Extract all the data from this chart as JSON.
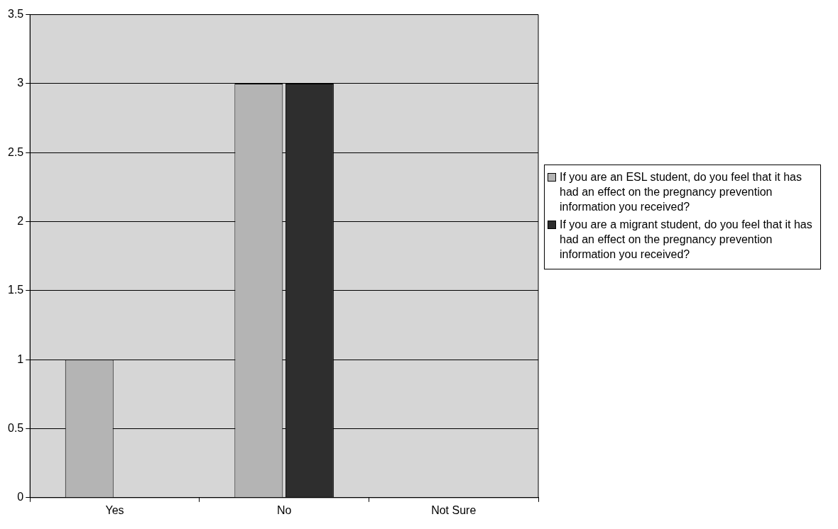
{
  "chart_data": {
    "type": "bar",
    "categories": [
      "Yes",
      "No",
      "Not Sure"
    ],
    "series": [
      {
        "name": "If you are an ESL student, do you feel that it has had an effect on the pregnancy prevention information you received?",
        "color": "#b4b4b4",
        "values": [
          1,
          3,
          0
        ]
      },
      {
        "name": "If you are a migrant student, do you feel that it has had an effect on the pregnancy prevention information you received?",
        "color": "#2e2e2e",
        "values": [
          0,
          3,
          0
        ]
      }
    ],
    "ylim": [
      0,
      3.5
    ],
    "yticks": [
      0,
      0.5,
      1,
      1.5,
      2,
      2.5,
      3,
      3.5
    ],
    "grid": "y",
    "legend": "right"
  }
}
